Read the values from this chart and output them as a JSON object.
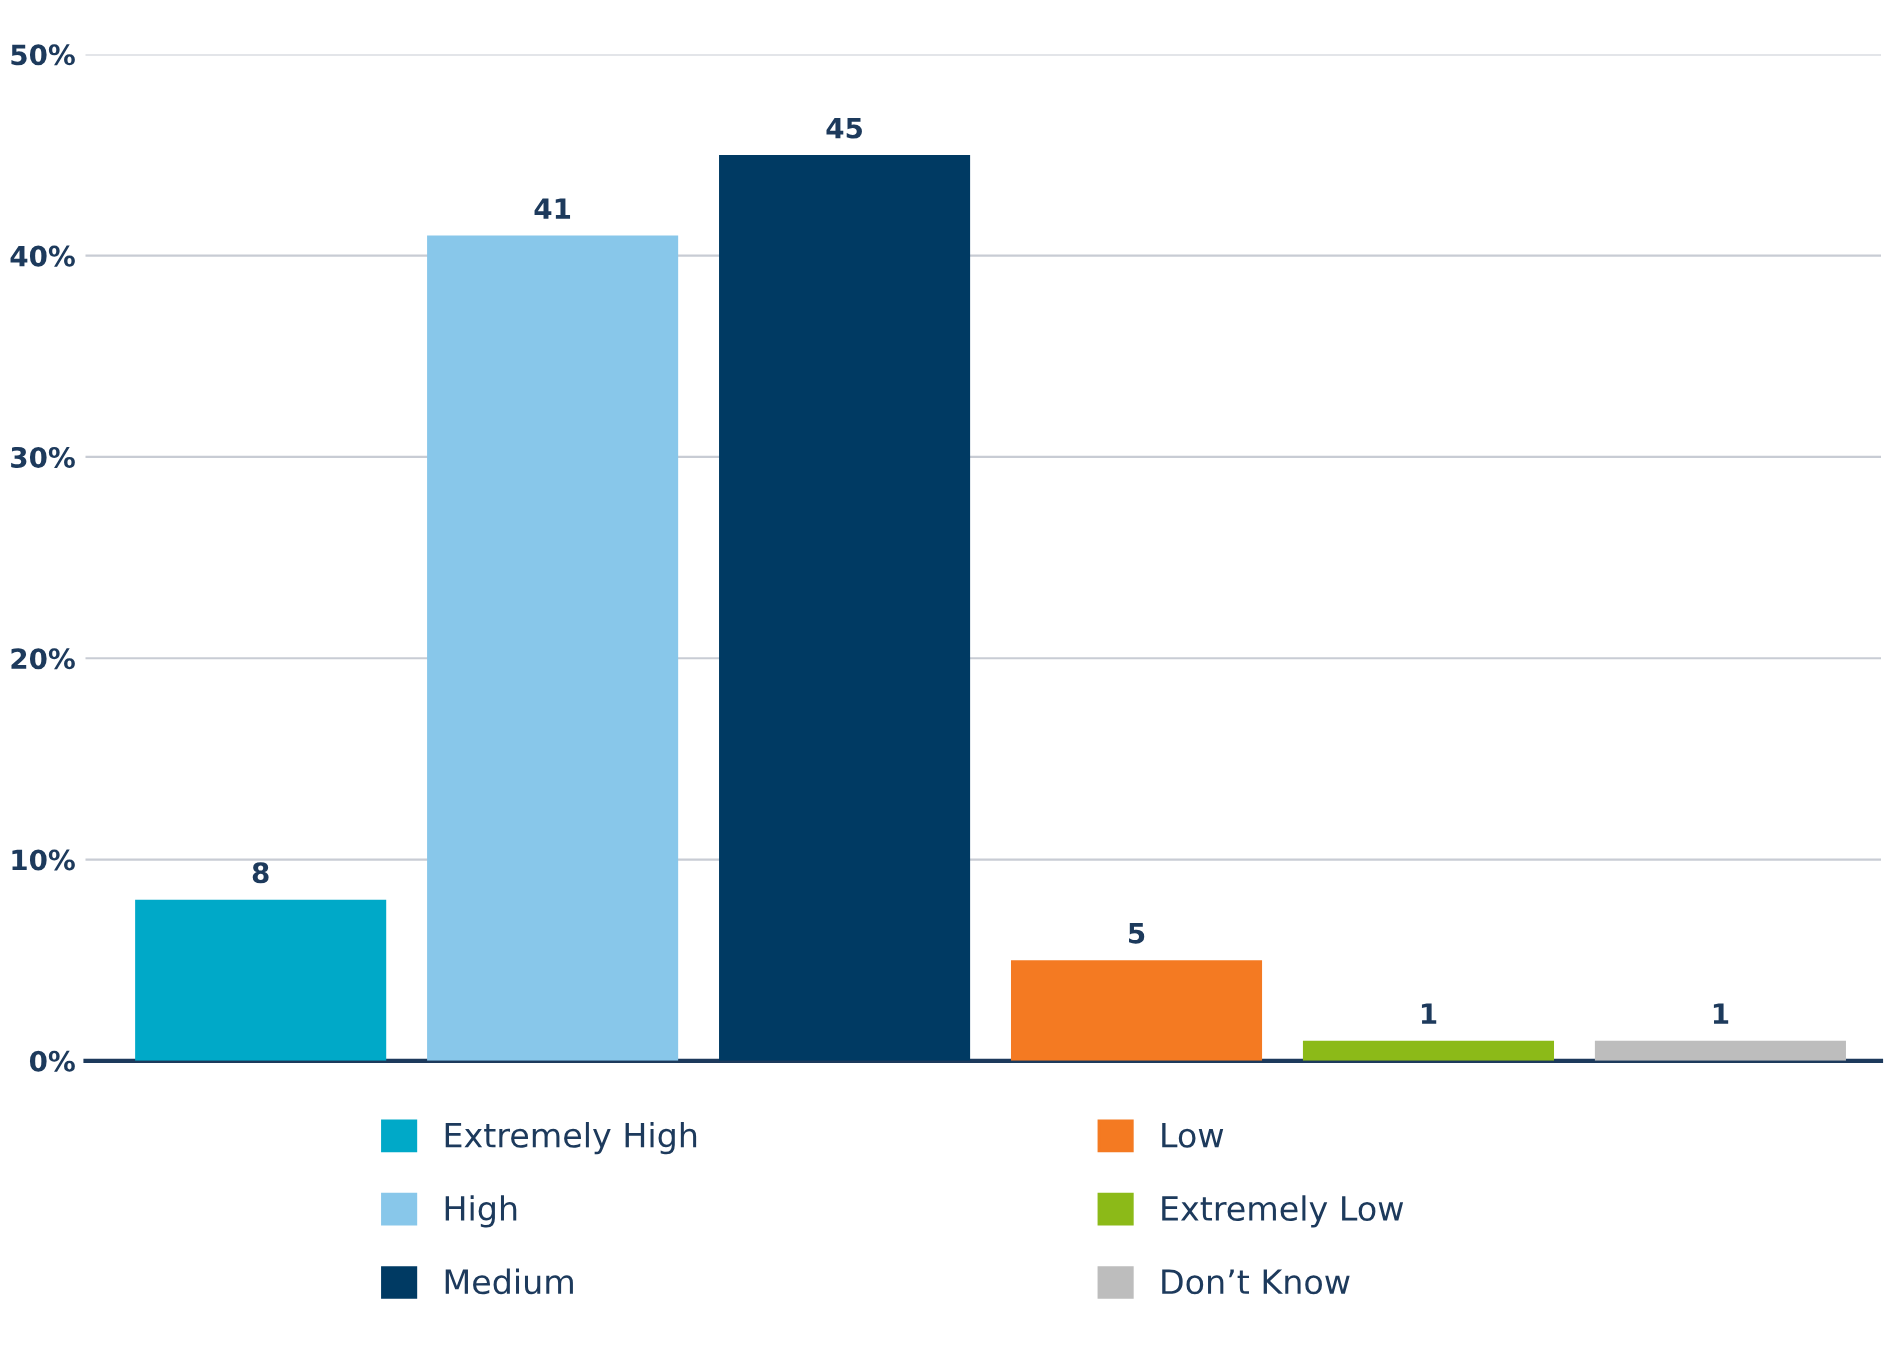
{
  "chart_data": {
    "type": "bar",
    "categories": [
      null,
      null,
      null,
      null,
      null,
      null
    ],
    "series": [
      {
        "name": "Extremely High",
        "color": "#00a9c8",
        "values": [
          8,
          null,
          null,
          null,
          null,
          null
        ]
      },
      {
        "name": "High",
        "color": "#88c7ea",
        "values": [
          null,
          41,
          null,
          null,
          null,
          null
        ]
      },
      {
        "name": "Medium",
        "color": "#003a63",
        "values": [
          null,
          null,
          45,
          null,
          null,
          null
        ]
      },
      {
        "name": "Low",
        "color": "#f47a22",
        "values": [
          null,
          null,
          null,
          5,
          null,
          null
        ]
      },
      {
        "name": "Extremely Low",
        "color": "#8cba18",
        "values": [
          null,
          null,
          null,
          null,
          1,
          null
        ]
      },
      {
        "name": "Don’t Know",
        "color": "#bdbdbd",
        "values": [
          null,
          null,
          null,
          null,
          null,
          1
        ]
      }
    ],
    "ylim": [
      0,
      50
    ],
    "yticks": [
      {
        "value": 0,
        "label": "0%"
      },
      {
        "value": 10,
        "label": "10%"
      },
      {
        "value": 20,
        "label": "20%"
      },
      {
        "value": 30,
        "label": "30%"
      },
      {
        "value": 40,
        "label": "40%"
      },
      {
        "value": 50,
        "label": "50%"
      }
    ],
    "grid": "y",
    "legend": "bottom",
    "data_labels": true
  }
}
